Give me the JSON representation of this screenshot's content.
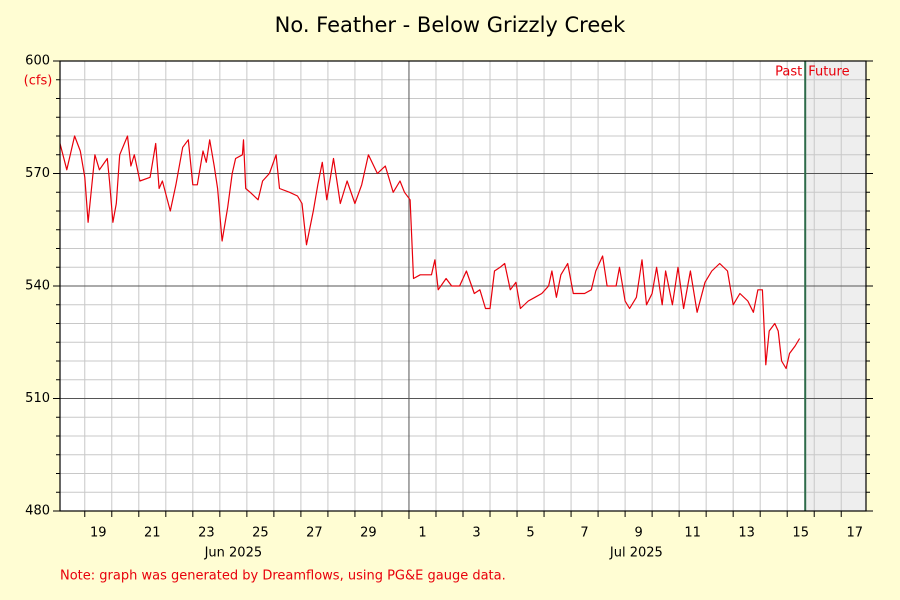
{
  "chart_data": {
    "type": "line",
    "title": "No. Feather - Below Grizzly Creek",
    "y_unit": "(cfs)",
    "note": "Note: graph was generated by Dreamflows, using PG&E gauge data.",
    "past_label": "Past",
    "future_label": "Future",
    "now": "2025-07-15T16:00",
    "color": "#e8000b",
    "xlim": [
      "2025-06-18T02:00",
      "2025-07-17T22:00"
    ],
    "ylim": [
      480,
      600
    ],
    "yticks": [
      480,
      510,
      540,
      570,
      600
    ],
    "yminor": [
      485,
      490,
      495,
      500,
      505,
      515,
      520,
      525,
      530,
      535,
      545,
      550,
      555,
      560,
      565,
      575,
      580,
      585,
      590,
      595
    ],
    "xticks": [
      {
        "value": "2025-06-19T12:00",
        "label": "19"
      },
      {
        "value": "2025-06-21T12:00",
        "label": "21"
      },
      {
        "value": "2025-06-23T12:00",
        "label": "23"
      },
      {
        "value": "2025-06-25T12:00",
        "label": "25"
      },
      {
        "value": "2025-06-27T12:00",
        "label": "27"
      },
      {
        "value": "2025-06-29T12:00",
        "label": "29"
      },
      {
        "value": "2025-07-01T12:00",
        "label": "1"
      },
      {
        "value": "2025-07-03T12:00",
        "label": "3"
      },
      {
        "value": "2025-07-05T12:00",
        "label": "5"
      },
      {
        "value": "2025-07-07T12:00",
        "label": "7"
      },
      {
        "value": "2025-07-09T12:00",
        "label": "9"
      },
      {
        "value": "2025-07-11T12:00",
        "label": "11"
      },
      {
        "value": "2025-07-13T12:00",
        "label": "13"
      },
      {
        "value": "2025-07-15T12:00",
        "label": "15"
      },
      {
        "value": "2025-07-17T12:00",
        "label": "17"
      }
    ],
    "month_labels": [
      {
        "value": "2025-06-24T12:00",
        "label": "Jun 2025"
      },
      {
        "value": "2025-07-09T10:00",
        "label": "Jul 2025"
      }
    ],
    "xgrid": [
      "2025-06-19T00:00",
      "2025-06-20T00:00",
      "2025-06-21T00:00",
      "2025-06-22T00:00",
      "2025-06-23T00:00",
      "2025-06-24T00:00",
      "2025-06-25T00:00",
      "2025-06-26T00:00",
      "2025-06-27T00:00",
      "2025-06-28T00:00",
      "2025-06-29T00:00",
      "2025-06-30T00:00",
      "2025-07-02T00:00",
      "2025-07-03T00:00",
      "2025-07-04T00:00",
      "2025-07-05T00:00",
      "2025-07-06T00:00",
      "2025-07-07T00:00",
      "2025-07-08T00:00",
      "2025-07-09T00:00",
      "2025-07-10T00:00",
      "2025-07-11T00:00",
      "2025-07-12T00:00",
      "2025-07-13T00:00",
      "2025-07-14T00:00",
      "2025-07-15T00:00",
      "2025-07-16T00:00",
      "2025-07-17T00:00"
    ],
    "xmajor": [
      "2025-07-01T00:00"
    ],
    "x": [
      "2025-06-18T02:00",
      "2025-06-18T08:00",
      "2025-06-18T15:00",
      "2025-06-18T20:00",
      "2025-06-19T00:00",
      "2025-06-19T03:00",
      "2025-06-19T06:00",
      "2025-06-19T09:00",
      "2025-06-19T13:00",
      "2025-06-19T20:00",
      "2025-06-19T22:00",
      "2025-06-20T01:00",
      "2025-06-20T04:00",
      "2025-06-20T07:00",
      "2025-06-20T14:00",
      "2025-06-20T17:00",
      "2025-06-20T20:00",
      "2025-06-21T01:00",
      "2025-06-21T10:00",
      "2025-06-21T15:00",
      "2025-06-21T18:00",
      "2025-06-21T21:00",
      "2025-06-22T04:00",
      "2025-06-22T09:00",
      "2025-06-22T15:00",
      "2025-06-22T20:00",
      "2025-06-23T00:00",
      "2025-06-23T04:00",
      "2025-06-23T09:00",
      "2025-06-23T12:00",
      "2025-06-23T15:00",
      "2025-06-23T19:00",
      "2025-06-23T22:00",
      "2025-06-24T02:00",
      "2025-06-24T07:00",
      "2025-06-24T11:00",
      "2025-06-24T14:00",
      "2025-06-24T20:00",
      "2025-06-24T21:00",
      "2025-06-24T23:00",
      "2025-06-25T03:00",
      "2025-06-25T10:00",
      "2025-06-25T14:00",
      "2025-06-25T20:00",
      "2025-06-26T02:00",
      "2025-06-26T05:00",
      "2025-06-26T14:00",
      "2025-06-26T21:00",
      "2025-06-27T01:00",
      "2025-06-27T05:00",
      "2025-06-27T11:00",
      "2025-06-27T15:00",
      "2025-06-27T19:00",
      "2025-06-27T23:00",
      "2025-06-28T05:00",
      "2025-06-28T11:00",
      "2025-06-28T17:00",
      "2025-06-29T00:00",
      "2025-06-29T06:00",
      "2025-06-29T12:00",
      "2025-06-29T20:00",
      "2025-06-30T03:00",
      "2025-06-30T10:00",
      "2025-06-30T16:00",
      "2025-06-30T20:00",
      "2025-07-01T01:00",
      "2025-07-01T04:00",
      "2025-07-01T10:00",
      "2025-07-01T20:00",
      "2025-07-01T23:00",
      "2025-07-02T02:00",
      "2025-07-02T09:00",
      "2025-07-02T14:00",
      "2025-07-02T21:00",
      "2025-07-03T03:00",
      "2025-07-03T10:00",
      "2025-07-03T15:00",
      "2025-07-03T20:00",
      "2025-07-04T00:00",
      "2025-07-04T04:00",
      "2025-07-04T09:00",
      "2025-07-04T13:00",
      "2025-07-04T18:00",
      "2025-07-04T23:00",
      "2025-07-05T03:00",
      "2025-07-05T10:00",
      "2025-07-05T16:00",
      "2025-07-05T22:00",
      "2025-07-06T04:00",
      "2025-07-06T07:00",
      "2025-07-06T11:00",
      "2025-07-06T15:00",
      "2025-07-06T21:00",
      "2025-07-07T02:00",
      "2025-07-07T12:00",
      "2025-07-07T18:00",
      "2025-07-07T22:00",
      "2025-07-08T04:00",
      "2025-07-08T08:00",
      "2025-07-08T16:00",
      "2025-07-08T19:00",
      "2025-07-09T00:00",
      "2025-07-09T04:00",
      "2025-07-09T10:00",
      "2025-07-09T15:00",
      "2025-07-09T19:00",
      "2025-07-10T00:00",
      "2025-07-10T04:00",
      "2025-07-10T09:00",
      "2025-07-10T12:00",
      "2025-07-10T18:00",
      "2025-07-10T23:00",
      "2025-07-11T04:00",
      "2025-07-11T10:00",
      "2025-07-11T16:00",
      "2025-07-11T23:00",
      "2025-07-12T05:00",
      "2025-07-12T12:00",
      "2025-07-12T19:00",
      "2025-07-13T00:00",
      "2025-07-13T06:00",
      "2025-07-13T13:00",
      "2025-07-13T18:00",
      "2025-07-13T22:00",
      "2025-07-14T02:00",
      "2025-07-14T05:00",
      "2025-07-14T08:00",
      "2025-07-14T13:00",
      "2025-07-14T16:00",
      "2025-07-14T19:00",
      "2025-07-14T23:00",
      "2025-07-15T02:00",
      "2025-07-15T07:00",
      "2025-07-15T11:00"
    ],
    "values": [
      578,
      571,
      580,
      576,
      569,
      557,
      566,
      575,
      571,
      574,
      568,
      557,
      562,
      575,
      580,
      572,
      575,
      568,
      569,
      578,
      566,
      568,
      560,
      567,
      577,
      579,
      567,
      567,
      576,
      573,
      579,
      572,
      566,
      552,
      561,
      570,
      574,
      575,
      579,
      566,
      565,
      563,
      568,
      570,
      575,
      566,
      565,
      564,
      562,
      551,
      560,
      567,
      573,
      563,
      574,
      562,
      568,
      562,
      567,
      575,
      570,
      572,
      565,
      568,
      565,
      563,
      542,
      543,
      543,
      547,
      539,
      542,
      540,
      540,
      544,
      538,
      539,
      534,
      534,
      544,
      545,
      546,
      539,
      541,
      534,
      536,
      537,
      538,
      540,
      544,
      537,
      543,
      546,
      538,
      538,
      539,
      544,
      548,
      540,
      540,
      545,
      536,
      534,
      537,
      547,
      535,
      538,
      545,
      535,
      544,
      535,
      545,
      534,
      544,
      533,
      541,
      544,
      546,
      544,
      535,
      538,
      536,
      533,
      539,
      539,
      519,
      528,
      530,
      528,
      520,
      518,
      522,
      524,
      526
    ]
  }
}
